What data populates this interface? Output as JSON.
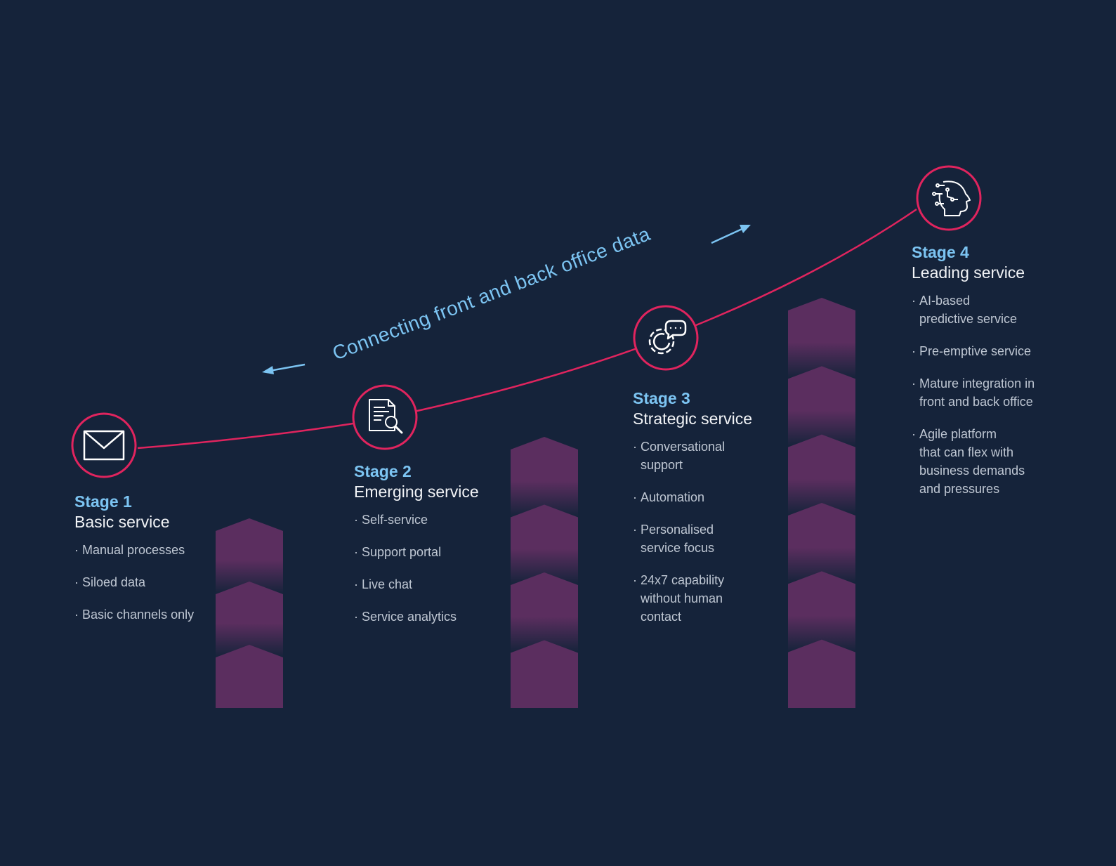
{
  "caption": "Connecting front and back office data",
  "colors": {
    "background": "#15233a",
    "curve": "#e0245e",
    "accent_text": "#7cc4f2",
    "arrow": "#7cc4f2",
    "chevron": "#5b2e5f"
  },
  "stages": [
    {
      "label": "Stage 1",
      "name": "Basic service",
      "icon": "envelope-icon",
      "items": [
        "Manual processes",
        "Siloed data",
        "Basic channels only"
      ]
    },
    {
      "label": "Stage 2",
      "name": "Emerging service",
      "icon": "document-search-icon",
      "items": [
        "Self-service",
        "Support portal",
        "Live chat",
        "Service analytics"
      ]
    },
    {
      "label": "Stage 3",
      "name": "Strategic service",
      "icon": "gear-chat-icon",
      "items": [
        "Conversational\nsupport",
        "Automation",
        "Personalised\nservice focus",
        "24x7 capability\nwithout human\ncontact"
      ]
    },
    {
      "label": "Stage 4",
      "name": "Leading service",
      "icon": "ai-head-icon",
      "items": [
        "AI-based\npredictive service",
        "Pre-emptive service",
        "Mature integration in\nfront and back office",
        "Agile platform\nthat can flex with\nbusiness demands\nand pressures"
      ]
    }
  ]
}
